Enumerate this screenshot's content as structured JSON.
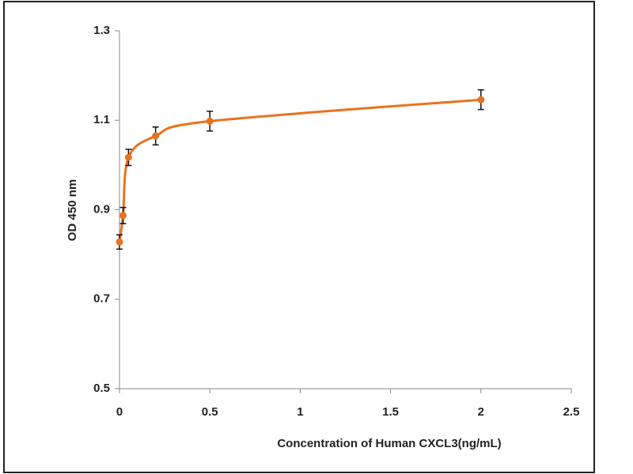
{
  "chart_data": {
    "type": "line",
    "xlabel": "Concentration of Human CXCL3(ng/mL)",
    "ylabel": "OD 450 nm",
    "x": [
      0,
      0.02,
      0.05,
      0.2,
      0.5,
      2
    ],
    "values": [
      0.828,
      0.887,
      1.017,
      1.065,
      1.098,
      1.146
    ],
    "errors": [
      0.016,
      0.018,
      0.018,
      0.02,
      0.022,
      0.022
    ],
    "color": "#e8731e",
    "xlim": [
      0,
      2.5
    ],
    "xticks": [
      0,
      0.5,
      1,
      1.5,
      2,
      2.5
    ],
    "ylim": [
      0.5,
      1.3
    ],
    "yticks": [
      0.5,
      0.7,
      0.9,
      1.1,
      1.3
    ],
    "grid": false
  }
}
